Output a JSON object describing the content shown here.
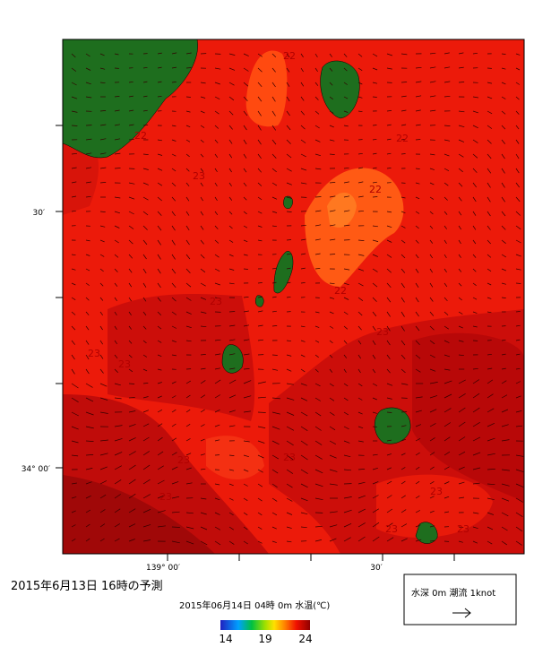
{
  "caption": "2015年6月13日 16時の予測",
  "map": {
    "lat_labels": [
      "30′",
      "34° 00′"
    ],
    "lon_labels": [
      "139° 00′",
      "30′"
    ],
    "contour_labels": [
      "22",
      "22",
      "22",
      "22",
      "22",
      "23",
      "23",
      "23",
      "23",
      "23",
      "23",
      "23",
      "23",
      "23",
      "23",
      "23"
    ]
  },
  "colorbar": {
    "title": "2015年06月14日 04時 0m 水温(℃)",
    "ticks": [
      14,
      19,
      24
    ]
  },
  "legend": {
    "label": "水深 0m 潮流 1knot"
  }
}
